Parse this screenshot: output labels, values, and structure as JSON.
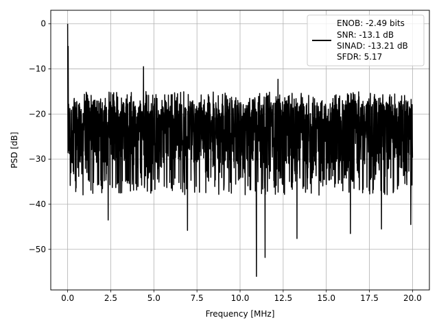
{
  "chart_data": {
    "type": "line",
    "title": "",
    "xlabel": "Frequency [MHz]",
    "ylabel": "PSD [dB]",
    "xlim": [
      -0.98,
      20.98
    ],
    "ylim": [
      -59.0,
      3.0
    ],
    "xticks": [
      0.0,
      2.5,
      5.0,
      7.5,
      10.0,
      12.5,
      15.0,
      17.5,
      20.0
    ],
    "xtick_labels": [
      "0.0",
      "2.5",
      "5.0",
      "7.5",
      "10.0",
      "12.5",
      "15.0",
      "17.5",
      "20.0"
    ],
    "yticks": [
      0,
      -10,
      -20,
      -30,
      -40,
      -50
    ],
    "ytick_labels": [
      "0",
      "−10",
      "−20",
      "−30",
      "−40",
      "−50"
    ],
    "grid": true,
    "legend_position": "top-right",
    "legend_lines": [
      "ENOB: -2.49 bits",
      "SNR: -13.1 dB",
      "SINAD: -13.21 dB",
      "SFDR: 5.17"
    ],
    "series": [
      {
        "color": "#000000",
        "x_start": 0.0,
        "x_end": 20.0,
        "notable_points": [
          {
            "x": 0.0,
            "y": 0.0
          },
          {
            "x": 0.03,
            "y": -5.0
          },
          {
            "x": 0.08,
            "y": -23.0
          },
          {
            "x": 4.4,
            "y": -9.5
          },
          {
            "x": 2.35,
            "y": -43.5
          },
          {
            "x": 6.95,
            "y": -45.8
          },
          {
            "x": 10.95,
            "y": -56.0
          },
          {
            "x": 11.45,
            "y": -51.8
          },
          {
            "x": 13.3,
            "y": -47.6
          },
          {
            "x": 16.4,
            "y": -46.5
          },
          {
            "x": 18.2,
            "y": -45.5
          },
          {
            "x": 19.9,
            "y": -44.5
          },
          {
            "x": 12.2,
            "y": -12.3
          }
        ],
        "typical_range_low": -12.5,
        "typical_range_high": -38.0
      }
    ]
  }
}
